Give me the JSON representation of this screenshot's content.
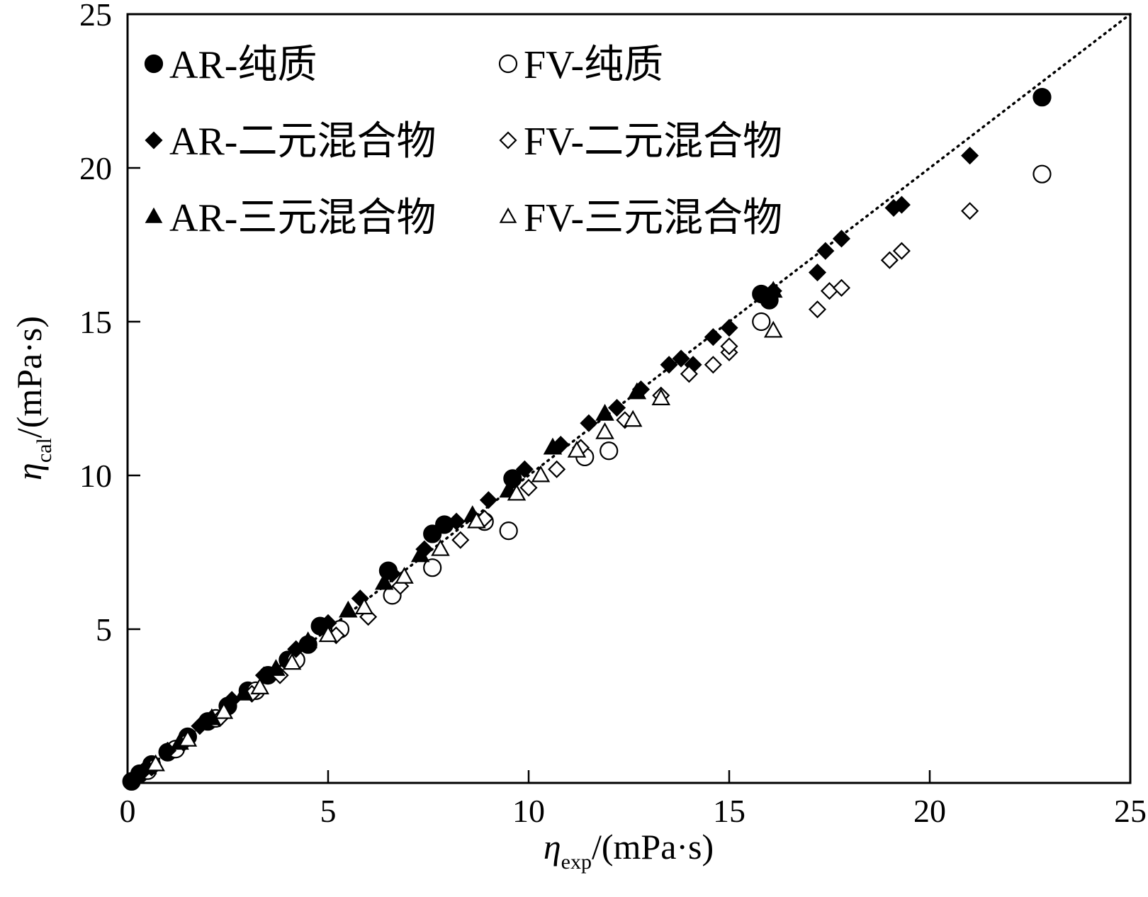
{
  "chart_data": {
    "type": "scatter",
    "title": "",
    "xlabel": {
      "symbol": "η",
      "subscript": "exp",
      "unit": "/(mPa·s)"
    },
    "ylabel": {
      "symbol": "η",
      "subscript": "cal",
      "unit": "/(mPa·s)"
    },
    "xlim": [
      0,
      25
    ],
    "ylim": [
      0,
      25
    ],
    "xticks": [
      "0",
      "5",
      "10",
      "15",
      "20",
      "25"
    ],
    "yticks": [
      "5",
      "10",
      "15",
      "20",
      "25"
    ],
    "xtick_values": [
      0,
      5,
      10,
      15,
      20,
      25
    ],
    "ytick_values": [
      5,
      10,
      15,
      20,
      25
    ],
    "grid": false,
    "legend_position": "top-left",
    "reference_line": {
      "style": "dotted",
      "from": [
        0,
        0
      ],
      "to": [
        25,
        25
      ]
    },
    "series": [
      {
        "name": "AR-纯质",
        "marker": "circle",
        "filled": true,
        "points": [
          [
            0.1,
            0.05
          ],
          [
            0.3,
            0.3
          ],
          [
            0.6,
            0.6
          ],
          [
            1.0,
            1.0
          ],
          [
            1.5,
            1.5
          ],
          [
            2.0,
            2.0
          ],
          [
            2.5,
            2.5
          ],
          [
            3.0,
            3.0
          ],
          [
            3.5,
            3.5
          ],
          [
            4.0,
            4.0
          ],
          [
            4.5,
            4.5
          ],
          [
            4.8,
            5.1
          ],
          [
            6.5,
            6.9
          ],
          [
            7.6,
            8.1
          ],
          [
            7.9,
            8.4
          ],
          [
            9.6,
            9.9
          ],
          [
            15.8,
            15.9
          ],
          [
            16.0,
            15.7
          ],
          [
            22.8,
            22.3
          ]
        ]
      },
      {
        "name": "FV-纯质",
        "marker": "circle",
        "filled": false,
        "points": [
          [
            0.5,
            0.4
          ],
          [
            1.2,
            1.1
          ],
          [
            2.2,
            2.1
          ],
          [
            3.2,
            3.0
          ],
          [
            4.2,
            4.0
          ],
          [
            5.3,
            5.0
          ],
          [
            6.6,
            6.1
          ],
          [
            7.6,
            7.0
          ],
          [
            8.9,
            8.5
          ],
          [
            9.5,
            8.2
          ],
          [
            11.4,
            10.6
          ],
          [
            12.0,
            10.8
          ],
          [
            15.8,
            15.0
          ],
          [
            22.8,
            19.8
          ]
        ]
      },
      {
        "name": "AR-二元混合物",
        "marker": "diamond",
        "filled": true,
        "points": [
          [
            0.4,
            0.4
          ],
          [
            1.0,
            1.05
          ],
          [
            1.8,
            1.85
          ],
          [
            2.6,
            2.7
          ],
          [
            3.4,
            3.5
          ],
          [
            4.2,
            4.35
          ],
          [
            5.0,
            5.2
          ],
          [
            5.8,
            6.0
          ],
          [
            6.6,
            6.8
          ],
          [
            7.4,
            7.6
          ],
          [
            8.2,
            8.5
          ],
          [
            9.0,
            9.2
          ],
          [
            9.9,
            10.2
          ],
          [
            10.8,
            11.0
          ],
          [
            11.5,
            11.7
          ],
          [
            12.2,
            12.2
          ],
          [
            12.8,
            12.8
          ],
          [
            13.5,
            13.6
          ],
          [
            13.8,
            13.8
          ],
          [
            14.1,
            13.6
          ],
          [
            14.6,
            14.5
          ],
          [
            15.0,
            14.8
          ],
          [
            16.1,
            16.0
          ],
          [
            17.2,
            16.6
          ],
          [
            17.4,
            17.3
          ],
          [
            17.8,
            17.7
          ],
          [
            19.1,
            18.7
          ],
          [
            19.3,
            18.8
          ],
          [
            21.0,
            20.4
          ]
        ]
      },
      {
        "name": "FV-二元混合物",
        "marker": "diamond",
        "filled": false,
        "points": [
          [
            0.6,
            0.5
          ],
          [
            1.4,
            1.3
          ],
          [
            2.3,
            2.1
          ],
          [
            3.1,
            2.9
          ],
          [
            3.8,
            3.5
          ],
          [
            5.2,
            4.8
          ],
          [
            6.0,
            5.4
          ],
          [
            6.8,
            6.4
          ],
          [
            8.3,
            7.9
          ],
          [
            8.9,
            8.6
          ],
          [
            10.0,
            9.6
          ],
          [
            10.7,
            10.2
          ],
          [
            11.3,
            10.9
          ],
          [
            12.4,
            11.8
          ],
          [
            13.3,
            12.6
          ],
          [
            14.0,
            13.3
          ],
          [
            14.6,
            13.6
          ],
          [
            15.0,
            14.0
          ],
          [
            15.0,
            14.2
          ],
          [
            17.2,
            15.4
          ],
          [
            17.5,
            16.0
          ],
          [
            17.8,
            16.1
          ],
          [
            19.0,
            17.0
          ],
          [
            19.3,
            17.3
          ],
          [
            21.0,
            18.6
          ]
        ]
      },
      {
        "name": "AR-三元混合物",
        "marker": "triangle",
        "filled": true,
        "points": [
          [
            0.5,
            0.5
          ],
          [
            1.3,
            1.3
          ],
          [
            2.1,
            2.1
          ],
          [
            2.9,
            2.9
          ],
          [
            3.7,
            3.7
          ],
          [
            4.5,
            4.6
          ],
          [
            5.5,
            5.6
          ],
          [
            6.4,
            6.5
          ],
          [
            7.3,
            7.4
          ],
          [
            8.6,
            8.7
          ],
          [
            9.5,
            9.5
          ],
          [
            10.6,
            10.9
          ],
          [
            11.9,
            12.0
          ],
          [
            12.7,
            12.7
          ],
          [
            16.1,
            16.0
          ]
        ]
      },
      {
        "name": "FV-三元混合物",
        "marker": "triangle",
        "filled": false,
        "points": [
          [
            0.7,
            0.6
          ],
          [
            1.5,
            1.4
          ],
          [
            2.4,
            2.3
          ],
          [
            3.3,
            3.1
          ],
          [
            4.1,
            3.9
          ],
          [
            5.0,
            4.8
          ],
          [
            5.9,
            5.7
          ],
          [
            6.9,
            6.7
          ],
          [
            7.8,
            7.6
          ],
          [
            8.7,
            8.5
          ],
          [
            9.7,
            9.4
          ],
          [
            10.3,
            10.0
          ],
          [
            11.2,
            10.8
          ],
          [
            11.9,
            11.4
          ],
          [
            12.6,
            11.8
          ],
          [
            13.3,
            12.5
          ],
          [
            16.1,
            14.7
          ]
        ]
      }
    ]
  }
}
